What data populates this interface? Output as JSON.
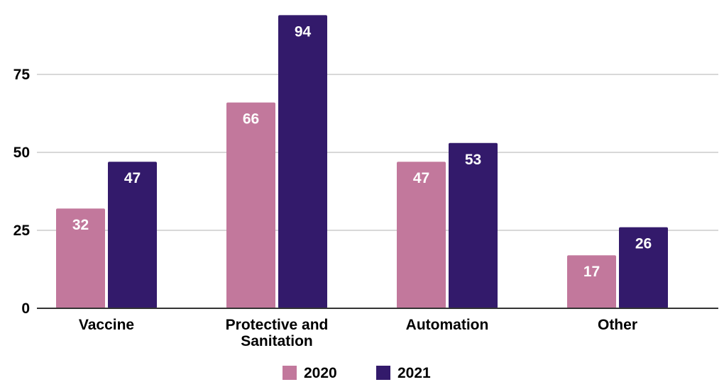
{
  "chart_data": {
    "type": "bar",
    "categories": [
      [
        "Vaccine"
      ],
      [
        "Protective and",
        "Sanitation"
      ],
      [
        "Automation"
      ],
      [
        "Other"
      ]
    ],
    "series": [
      {
        "name": "2020",
        "color": "#c2789c",
        "values": [
          32,
          66,
          47,
          17
        ]
      },
      {
        "name": "2021",
        "color": "#331a6b",
        "values": [
          47,
          94,
          53,
          26
        ]
      }
    ],
    "title": "",
    "xlabel": "",
    "ylabel": "",
    "ylim": [
      0,
      100
    ],
    "yticks": [
      0,
      25,
      50,
      75
    ],
    "grid": true,
    "legend_position": "bottom"
  }
}
